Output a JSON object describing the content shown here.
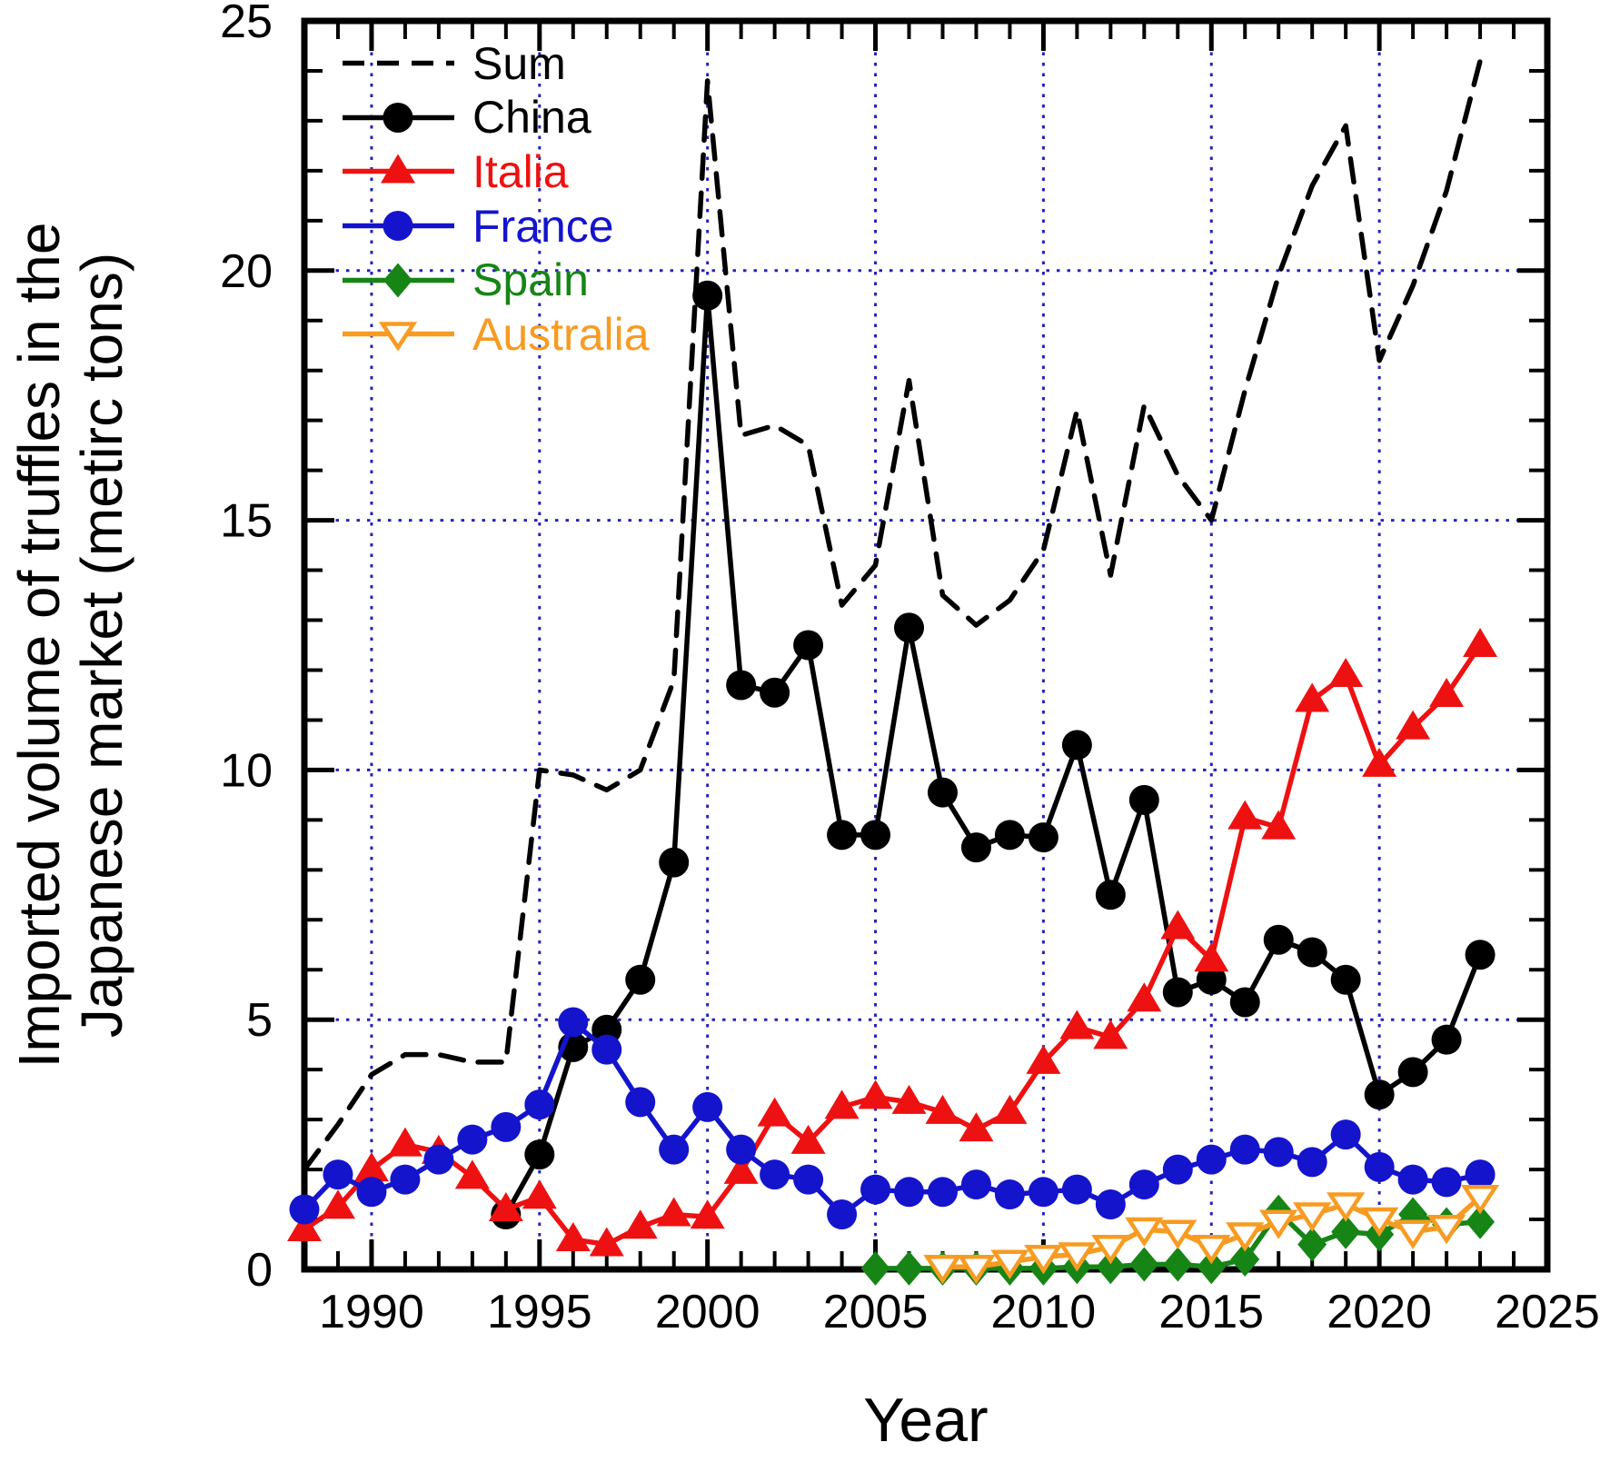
{
  "chart_data": {
    "type": "line",
    "title": "",
    "xlabel": "Year",
    "ylabel_line1": "Imported volume of truffles in the",
    "ylabel_line2": "Japanese market (metirc tons)",
    "xlim": [
      1988,
      2025
    ],
    "ylim": [
      0,
      25
    ],
    "x_major_ticks": [
      1990,
      1995,
      2000,
      2005,
      2010,
      2015,
      2020,
      2025
    ],
    "y_major_ticks": [
      0,
      5,
      10,
      15,
      20,
      25
    ],
    "x_minor_step": 1,
    "y_minor_step": 1,
    "grid": true,
    "grid_color": "#2323BE",
    "frame_color": "#000000",
    "background": "#FFFFFF",
    "legend_position": "top-left",
    "series": [
      {
        "name": "Sum",
        "color": "#000000",
        "line": "dashed",
        "marker": "none",
        "x": [
          1988,
          1989,
          1990,
          1991,
          1992,
          1993,
          1994,
          1995,
          1996,
          1997,
          1998,
          1999,
          2000,
          2001,
          2002,
          2003,
          2004,
          2005,
          2006,
          2007,
          2008,
          2009,
          2010,
          2011,
          2012,
          2013,
          2014,
          2015,
          2016,
          2017,
          2018,
          2019,
          2020,
          2021,
          2022,
          2023
        ],
        "y": [
          2.0,
          2.9,
          3.9,
          4.3,
          4.3,
          4.15,
          4.15,
          10.0,
          9.9,
          9.6,
          10.0,
          11.8,
          23.8,
          16.7,
          16.9,
          16.5,
          13.3,
          14.1,
          17.8,
          13.5,
          12.9,
          13.4,
          14.4,
          17.2,
          13.9,
          17.3,
          15.9,
          15.0,
          17.6,
          19.9,
          21.7,
          22.9,
          18.2,
          19.7,
          21.6,
          24.2
        ]
      },
      {
        "name": "China",
        "color": "#000000",
        "line": "solid",
        "marker": "circle",
        "x": [
          1994,
          1995,
          1996,
          1997,
          1998,
          1999,
          2000,
          2001,
          2002,
          2003,
          2004,
          2005,
          2006,
          2007,
          2008,
          2009,
          2010,
          2011,
          2012,
          2013,
          2014,
          2015,
          2016,
          2017,
          2018,
          2019,
          2020,
          2021,
          2022,
          2023
        ],
        "y": [
          1.1,
          2.3,
          4.45,
          4.8,
          5.8,
          8.15,
          19.5,
          11.7,
          11.55,
          12.5,
          8.7,
          8.7,
          12.85,
          9.55,
          8.45,
          8.7,
          8.65,
          10.5,
          7.5,
          9.4,
          5.55,
          5.8,
          5.35,
          6.6,
          6.35,
          5.8,
          3.5,
          3.95,
          4.6,
          6.3
        ]
      },
      {
        "name": "Italia",
        "color": "#EE1111",
        "line": "solid",
        "marker": "triangle-up",
        "x": [
          1988,
          1989,
          1990,
          1991,
          1992,
          1993,
          1994,
          1995,
          1996,
          1997,
          1998,
          1999,
          2000,
          2001,
          2002,
          2003,
          2004,
          2005,
          2006,
          2007,
          2008,
          2009,
          2010,
          2011,
          2012,
          2013,
          2014,
          2015,
          2016,
          2017,
          2018,
          2019,
          2020,
          2021,
          2022,
          2023
        ],
        "y": [
          0.8,
          1.25,
          2.0,
          2.5,
          2.35,
          1.85,
          1.2,
          1.45,
          0.6,
          0.5,
          0.85,
          1.1,
          1.05,
          1.95,
          3.1,
          2.55,
          3.25,
          3.45,
          3.35,
          3.15,
          2.8,
          3.15,
          4.15,
          4.85,
          4.65,
          5.4,
          6.85,
          6.2,
          9.05,
          8.85,
          11.4,
          11.9,
          10.1,
          10.85,
          11.5,
          12.5
        ]
      },
      {
        "name": "France",
        "color": "#1414CC",
        "line": "solid",
        "marker": "circle",
        "x": [
          1988,
          1989,
          1990,
          1991,
          1992,
          1993,
          1994,
          1995,
          1996,
          1997,
          1998,
          1999,
          2000,
          2001,
          2002,
          2003,
          2004,
          2005,
          2006,
          2007,
          2008,
          2009,
          2010,
          2011,
          2012,
          2013,
          2014,
          2015,
          2016,
          2017,
          2018,
          2019,
          2020,
          2021,
          2022,
          2023
        ],
        "y": [
          1.2,
          1.9,
          1.55,
          1.8,
          2.2,
          2.6,
          2.85,
          3.3,
          4.95,
          4.4,
          3.35,
          2.4,
          3.25,
          2.4,
          1.9,
          1.8,
          1.1,
          1.6,
          1.55,
          1.55,
          1.7,
          1.5,
          1.55,
          1.6,
          1.3,
          1.7,
          2.0,
          2.2,
          2.4,
          2.35,
          2.15,
          2.7,
          2.05,
          1.8,
          1.75,
          1.9
        ]
      },
      {
        "name": "Spain",
        "color": "#168516",
        "line": "solid",
        "marker": "diamond",
        "x": [
          2005,
          2006,
          2007,
          2008,
          2009,
          2010,
          2011,
          2012,
          2013,
          2014,
          2015,
          2016,
          2017,
          2018,
          2019,
          2020,
          2021,
          2022,
          2023
        ],
        "y": [
          0.02,
          0.02,
          0.02,
          0.02,
          0.02,
          0.02,
          0.05,
          0.05,
          0.1,
          0.1,
          0.05,
          0.2,
          1.15,
          0.5,
          0.75,
          0.7,
          1.1,
          0.9,
          0.95
        ]
      },
      {
        "name": "Australia",
        "color": "#F89B22",
        "line": "solid",
        "marker": "triangle-down-open",
        "x": [
          2007,
          2008,
          2009,
          2010,
          2011,
          2012,
          2013,
          2014,
          2015,
          2016,
          2017,
          2018,
          2019,
          2020,
          2021,
          2022,
          2023
        ],
        "y": [
          0.05,
          0.05,
          0.15,
          0.25,
          0.3,
          0.45,
          0.8,
          0.75,
          0.45,
          0.7,
          0.95,
          1.1,
          1.3,
          1.0,
          0.75,
          0.85,
          1.45
        ]
      }
    ]
  }
}
